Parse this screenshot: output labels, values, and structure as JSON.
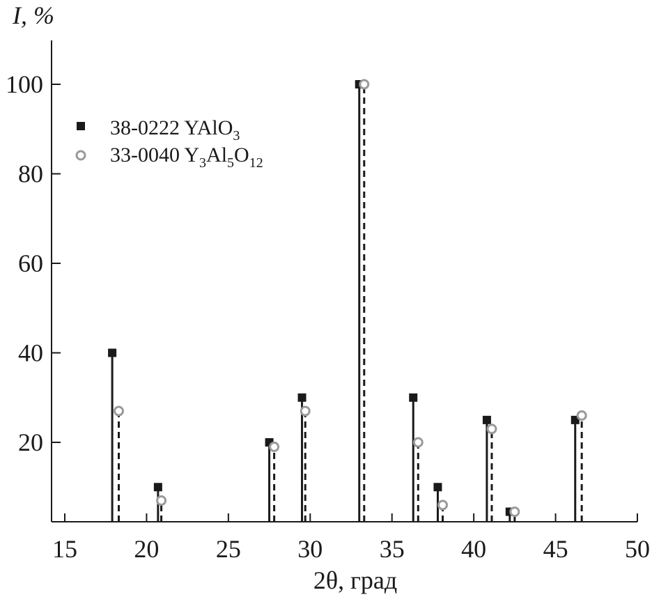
{
  "chart_data": {
    "type": "scatter",
    "xlabel": "2θ, град",
    "ylabel_italic": "I",
    "ylabel_rest": ", %",
    "xlim": [
      15,
      50
    ],
    "ylim": [
      2,
      110
    ],
    "x_ticks": [
      15,
      20,
      25,
      30,
      35,
      40,
      45,
      50
    ],
    "y_ticks": [
      20,
      40,
      60,
      80,
      100
    ],
    "legend_position": "top-left",
    "series": [
      {
        "name": "38-0222 YAlO3",
        "legend_prefix": "38-0222 YAlO",
        "legend_sub1": "3",
        "marker": "filled-square",
        "line": "solid",
        "color": "#1a1a1a",
        "points": [
          {
            "x": 17.9,
            "y": 40
          },
          {
            "x": 20.7,
            "y": 10
          },
          {
            "x": 27.5,
            "y": 20
          },
          {
            "x": 29.5,
            "y": 30
          },
          {
            "x": 33.0,
            "y": 100
          },
          {
            "x": 36.3,
            "y": 30
          },
          {
            "x": 37.8,
            "y": 10
          },
          {
            "x": 40.8,
            "y": 25
          },
          {
            "x": 42.2,
            "y": 4.5
          },
          {
            "x": 46.2,
            "y": 25
          }
        ]
      },
      {
        "name": "33-0040 Y3Al5O12",
        "legend_prefix": "33-0040 Y",
        "legend_sub1": "3",
        "legend_mid1": "Al",
        "legend_sub2": "5",
        "legend_mid2": "O",
        "legend_sub3": "12",
        "marker": "open-circle",
        "line": "dashed",
        "color": "#1a1a1a",
        "marker_stroke": "#9a9a9a",
        "points": [
          {
            "x": 18.3,
            "y": 27
          },
          {
            "x": 20.9,
            "y": 7
          },
          {
            "x": 27.8,
            "y": 19
          },
          {
            "x": 29.7,
            "y": 27
          },
          {
            "x": 33.3,
            "y": 100
          },
          {
            "x": 36.6,
            "y": 20
          },
          {
            "x": 38.1,
            "y": 6
          },
          {
            "x": 41.1,
            "y": 23
          },
          {
            "x": 42.5,
            "y": 4.5
          },
          {
            "x": 46.6,
            "y": 26
          }
        ]
      }
    ]
  }
}
